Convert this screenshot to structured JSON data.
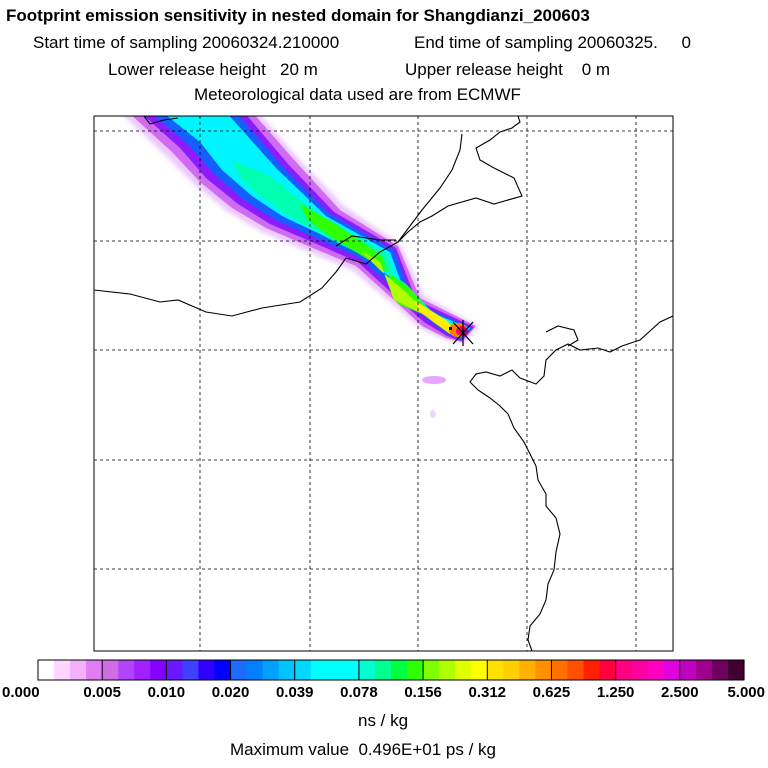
{
  "header": {
    "title": "Footprint emission sensitivity in nested domain for Shangdianzi_200603",
    "start_label": "Start time of sampling 20060324.210000",
    "end_label": "End time of sampling 20060325.     0",
    "lower_label": "Lower release height   20 m",
    "upper_label": "Upper release height    0 m",
    "meteo_label": "Meteorological data used are from ECMWF"
  },
  "footer": {
    "units": "ns / kg",
    "max_value": "Maximum value  0.496E+01 ps / kg"
  },
  "colors": {
    "coastline": "#000000",
    "grid": "#000000",
    "receptor": "#000000"
  },
  "chart_data": {
    "type": "heatmap",
    "title": "Footprint emission sensitivity in nested domain for Shangdianzi_200603",
    "colorbar_label": "ns / kg",
    "colorbar_ticks": [
      "0.000",
      "0.005",
      "0.010",
      "0.020",
      "0.039",
      "0.078",
      "0.156",
      "0.312",
      "0.625",
      "1.250",
      "2.500",
      "5.000"
    ],
    "colorbar_colors": [
      "#ffffff",
      "#ffd6ff",
      "#f2b0ff",
      "#e07cf4",
      "#d06ce4",
      "#b044ff",
      "#a020ff",
      "#8400ff",
      "#6a18ff",
      "#4040ff",
      "#3000ff",
      "#0000ff",
      "#1c6cff",
      "#0080ff",
      "#00a0ff",
      "#00c4ff",
      "#00d8ff",
      "#00ffff",
      "#00ffff",
      "#00ffff",
      "#00ffd0",
      "#00ff90",
      "#00ff40",
      "#30ff00",
      "#80ff00",
      "#b0ff00",
      "#e0ff00",
      "#ffff00",
      "#ffe000",
      "#ffd000",
      "#ffb000",
      "#ff9000",
      "#ff7000",
      "#ff5000",
      "#ff2000",
      "#ff0040",
      "#ff0080",
      "#ff00a0",
      "#ff00c0",
      "#e000e0",
      "#c000c0",
      "#a00090",
      "#700060",
      "#400030"
    ],
    "maximum": "0.496E+01 ps / kg",
    "receptor": "Shangdianzi"
  }
}
